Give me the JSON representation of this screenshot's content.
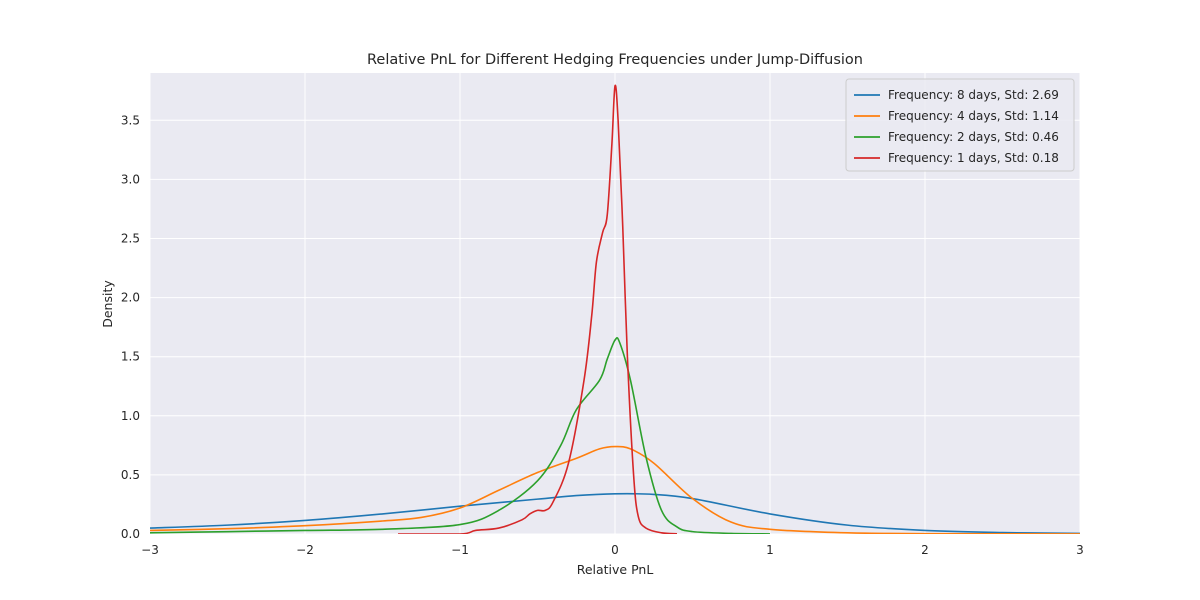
{
  "chart_data": {
    "type": "line",
    "title": "Relative PnL for Different Hedging Frequencies under Jump-Diffusion",
    "xlabel": "Relative PnL",
    "ylabel": "Density",
    "xlim": [
      -3,
      3
    ],
    "ylim": [
      0,
      3.9
    ],
    "x_ticks": [
      {
        "value": -3,
        "label": "−3"
      },
      {
        "value": -2,
        "label": "−2"
      },
      {
        "value": -1,
        "label": "−1"
      },
      {
        "value": 0,
        "label": "0"
      },
      {
        "value": 1,
        "label": "1"
      },
      {
        "value": 2,
        "label": "2"
      },
      {
        "value": 3,
        "label": "3"
      }
    ],
    "y_ticks": [
      {
        "value": 0,
        "label": "0.0"
      },
      {
        "value": 0.5,
        "label": "0.5"
      },
      {
        "value": 1.0,
        "label": "1.0"
      },
      {
        "value": 1.5,
        "label": "1.5"
      },
      {
        "value": 2.0,
        "label": "2.0"
      },
      {
        "value": 2.5,
        "label": "2.5"
      },
      {
        "value": 3.0,
        "label": "3.0"
      },
      {
        "value": 3.5,
        "label": "3.5"
      }
    ],
    "grid": true,
    "legend_position": "top-right",
    "series": [
      {
        "name": "Frequency: 8 days, Std: 2.69",
        "color": "#1f77b4",
        "x": [
          -3.0,
          -2.5,
          -2.0,
          -1.5,
          -1.0,
          -0.5,
          -0.25,
          0.0,
          0.25,
          0.5,
          1.0,
          1.5,
          2.0,
          2.5,
          3.0
        ],
        "y": [
          0.05,
          0.075,
          0.115,
          0.17,
          0.235,
          0.295,
          0.325,
          0.34,
          0.335,
          0.3,
          0.17,
          0.075,
          0.03,
          0.012,
          0.005
        ]
      },
      {
        "name": "Frequency: 4 days, Std: 1.14",
        "color": "#ff7f0e",
        "x": [
          -3.0,
          -2.5,
          -2.0,
          -1.5,
          -1.25,
          -1.0,
          -0.75,
          -0.5,
          -0.25,
          -0.1,
          0.0,
          0.1,
          0.25,
          0.5,
          0.75,
          1.0,
          1.5,
          2.0,
          3.0
        ],
        "y": [
          0.03,
          0.045,
          0.07,
          0.11,
          0.14,
          0.22,
          0.37,
          0.52,
          0.64,
          0.72,
          0.74,
          0.72,
          0.6,
          0.3,
          0.1,
          0.04,
          0.01,
          0.003,
          0.001
        ]
      },
      {
        "name": "Frequency: 2 days, Std: 0.46",
        "color": "#2ca02c",
        "x": [
          -3.0,
          -2.5,
          -2.0,
          -1.5,
          -1.0,
          -0.75,
          -0.5,
          -0.35,
          -0.25,
          -0.1,
          -0.05,
          0.0,
          0.03,
          0.1,
          0.2,
          0.3,
          0.4,
          0.5,
          0.75,
          1.0
        ],
        "y": [
          0.01,
          0.02,
          0.03,
          0.04,
          0.08,
          0.2,
          0.45,
          0.75,
          1.05,
          1.3,
          1.48,
          1.64,
          1.62,
          1.3,
          0.65,
          0.2,
          0.06,
          0.02,
          0.005,
          0.001
        ]
      },
      {
        "name": "Frequency: 1 days, Std: 0.18",
        "color": "#d62728",
        "x": [
          -1.4,
          -1.0,
          -0.9,
          -0.75,
          -0.6,
          -0.55,
          -0.5,
          -0.45,
          -0.4,
          -0.3,
          -0.2,
          -0.15,
          -0.12,
          -0.08,
          -0.05,
          -0.02,
          0.0,
          0.02,
          0.05,
          0.08,
          0.12,
          0.15,
          0.2,
          0.3,
          0.4
        ],
        "y": [
          0.0,
          0.0,
          0.03,
          0.05,
          0.12,
          0.17,
          0.2,
          0.2,
          0.27,
          0.6,
          1.3,
          1.85,
          2.3,
          2.55,
          2.7,
          3.3,
          3.79,
          3.5,
          2.6,
          1.5,
          0.5,
          0.15,
          0.05,
          0.01,
          0.002
        ]
      }
    ]
  }
}
